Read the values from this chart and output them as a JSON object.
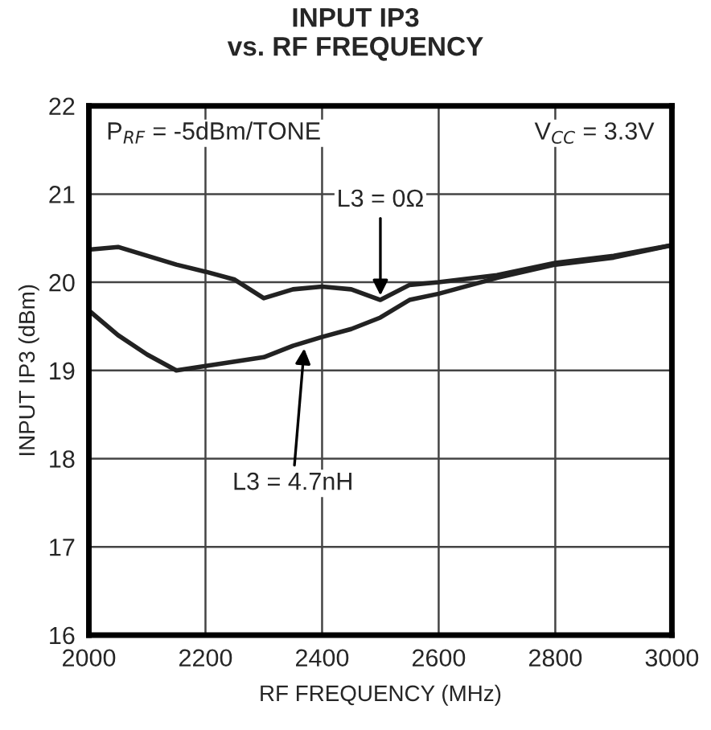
{
  "chart_data": {
    "type": "line",
    "title": "INPUT IP3\nvs. RF FREQUENCY",
    "xlabel": "RF FREQUENCY (MHz)",
    "ylabel": "INPUT IP3 (dBm)",
    "x": [
      2000,
      2050,
      2100,
      2150,
      2200,
      2250,
      2300,
      2350,
      2400,
      2450,
      2500,
      2550,
      2600,
      2700,
      2800,
      2900,
      3000
    ],
    "series": [
      {
        "color": "#222222",
        "values": [
          20.37,
          20.4,
          20.3,
          20.2,
          20.12,
          20.03,
          19.82,
          19.92,
          19.95,
          19.92,
          19.8,
          19.97,
          20.0,
          20.08,
          20.22,
          20.3,
          20.42
        ]
      },
      {
        "color": "#222222",
        "values": [
          19.68,
          19.4,
          19.18,
          19.0,
          19.05,
          19.1,
          19.15,
          19.28,
          19.38,
          19.47,
          19.6,
          19.8,
          19.87,
          20.05,
          20.2,
          20.28,
          20.42
        ]
      }
    ],
    "annotations": [
      "P$_{RF}$ = -5dBm/TONE",
      "V$_{CC}$ = 3.3V",
      {
        "text": "L3 = 0Ω",
        "x": 2500,
        "y": 19.8
      },
      {
        "text": "L3 = 4.7nH",
        "x": 2370,
        "y": 19.3
      }
    ],
    "xlim": [
      2000,
      3000
    ],
    "xticks": [
      2000,
      2200,
      2400,
      2600,
      2800,
      3000
    ],
    "ylim": [
      16,
      22
    ],
    "yticks": [
      16,
      17,
      18,
      19,
      20,
      21,
      22
    ],
    "grid": true,
    "line_style": "solid",
    "marker": "none"
  }
}
